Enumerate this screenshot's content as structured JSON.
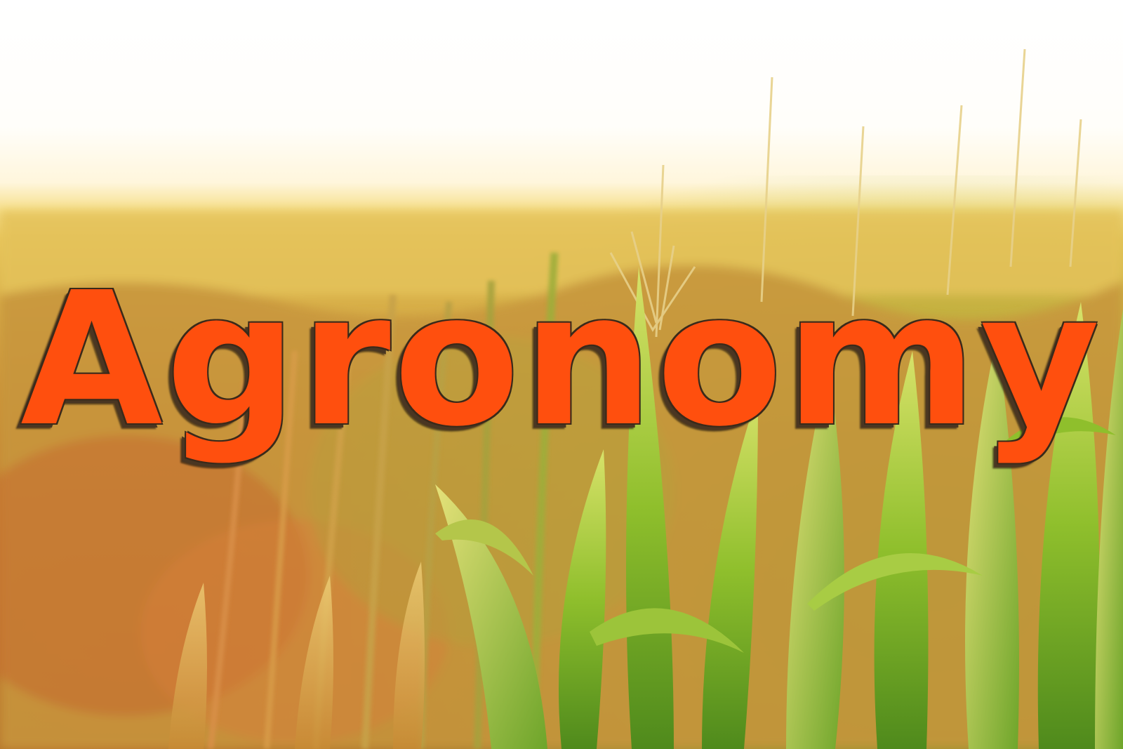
{
  "title": "Agronomy",
  "image": {
    "subject": "cornfield-in-sunlight",
    "colors": {
      "title_fill": "#ff4f0e",
      "title_outline": "#3a2a1a",
      "sky": "#ffffff",
      "foliage_green": "#7fb52a",
      "foliage_gold": "#d9b14a"
    }
  }
}
